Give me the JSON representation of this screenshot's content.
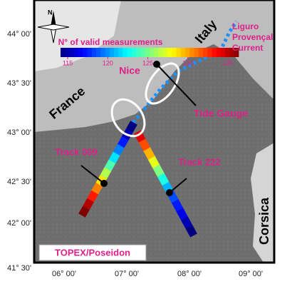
{
  "map": {
    "x_labels": [
      "06° 00'",
      "07° 00'",
      "08° 00'",
      "09° 00'"
    ],
    "y_labels": [
      "44° 00'",
      "43° 30'",
      "43° 00'",
      "42° 30'",
      "42° 00'",
      "41° 30'"
    ],
    "compass": "N",
    "places": {
      "italy": "Italy",
      "france": "France",
      "nice": "Nice",
      "corsica": "Corsica"
    },
    "current": [
      "Liguro",
      "Provençal",
      "Current"
    ],
    "tide_gauge": "Tide Gauge",
    "colorbar": {
      "title": "N° of valid measurements",
      "ticks": [
        115,
        120,
        125,
        130,
        135
      ]
    },
    "tracks": [
      {
        "name": "Track 009",
        "values": [
          135,
          134,
          132,
          130,
          128,
          126,
          124,
          122,
          120,
          118,
          116,
          115
        ]
      },
      {
        "name": "Track 222",
        "values": [
          133,
          131,
          129,
          127,
          125,
          123,
          121,
          119,
          118,
          117,
          116,
          115
        ]
      }
    ],
    "badge": "TOPEX/Poseidon"
  }
}
